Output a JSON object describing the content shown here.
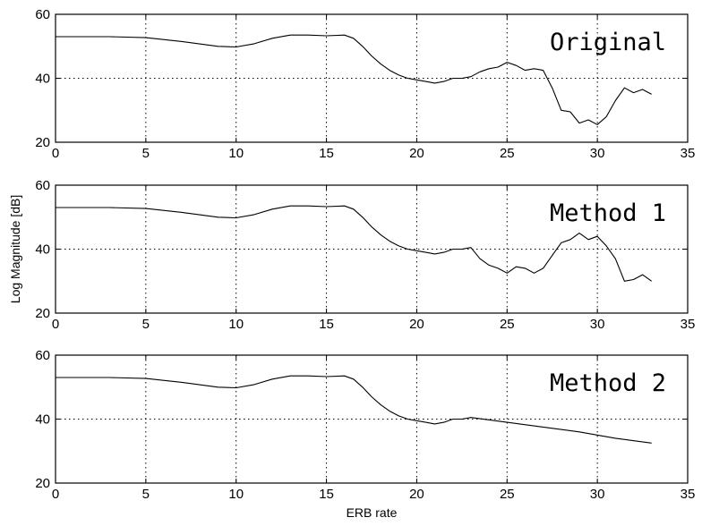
{
  "chart_data": [
    {
      "type": "line",
      "title": "Original",
      "xlim": [
        0,
        35
      ],
      "ylim": [
        20,
        60
      ],
      "xticks": [
        0,
        5,
        10,
        15,
        20,
        25,
        30,
        35
      ],
      "yticks": [
        20,
        40,
        60
      ],
      "grid": true,
      "series": [
        {
          "x": [
            0,
            3,
            5,
            7,
            9,
            10,
            11,
            12,
            13,
            14,
            15,
            16,
            16.5,
            17,
            17.5,
            18,
            18.5,
            19,
            19.5,
            20,
            20.5,
            21,
            21.5,
            22,
            22.5,
            23,
            23.5,
            24,
            24.5,
            25,
            25.5,
            26,
            26.5,
            27,
            27.5,
            28,
            28.5,
            29,
            29.5,
            30,
            30.5,
            31,
            31.5,
            32,
            32.5,
            33
          ],
          "y": [
            53,
            53,
            52.7,
            51.5,
            50,
            49.8,
            50.8,
            52.5,
            53.5,
            53.5,
            53.3,
            53.5,
            52.5,
            50,
            47,
            44.5,
            42.5,
            41,
            40,
            39.5,
            39,
            38.5,
            39,
            40,
            40,
            40.5,
            42,
            43,
            43.5,
            45,
            44,
            42.5,
            43,
            42.5,
            37,
            30,
            29.5,
            26,
            27,
            25.5,
            28,
            33,
            37,
            35.5,
            36.5,
            35
          ]
        }
      ]
    },
    {
      "type": "line",
      "title": "Method 1",
      "ylabel": "Log Magnitude [dB]",
      "xlim": [
        0,
        35
      ],
      "ylim": [
        20,
        60
      ],
      "xticks": [
        0,
        5,
        10,
        15,
        20,
        25,
        30,
        35
      ],
      "yticks": [
        20,
        40,
        60
      ],
      "grid": true,
      "series": [
        {
          "x": [
            0,
            3,
            5,
            7,
            9,
            10,
            11,
            12,
            13,
            14,
            15,
            16,
            16.5,
            17,
            17.5,
            18,
            18.5,
            19,
            19.5,
            20,
            20.5,
            21,
            21.5,
            22,
            22.5,
            23,
            23.5,
            24,
            24.5,
            25,
            25.5,
            26,
            26.5,
            27,
            27.5,
            28,
            28.5,
            29,
            29.5,
            30,
            30.5,
            31,
            31.5,
            32,
            32.5,
            33
          ],
          "y": [
            53,
            53,
            52.7,
            51.5,
            50,
            49.8,
            50.8,
            52.5,
            53.5,
            53.5,
            53.3,
            53.5,
            52.5,
            50,
            47,
            44.5,
            42.5,
            41,
            40,
            39.5,
            39,
            38.5,
            39,
            40,
            40,
            40.5,
            37,
            35,
            34,
            32.5,
            34.5,
            34,
            32.5,
            34,
            38,
            42,
            43,
            45,
            43,
            44,
            41,
            37,
            30,
            30.5,
            32,
            30
          ]
        }
      ]
    },
    {
      "type": "line",
      "title": "Method 2",
      "xlabel": "ERB rate",
      "xlim": [
        0,
        35
      ],
      "ylim": [
        20,
        60
      ],
      "xticks": [
        0,
        5,
        10,
        15,
        20,
        25,
        30,
        35
      ],
      "yticks": [
        20,
        40,
        60
      ],
      "grid": true,
      "series": [
        {
          "x": [
            0,
            3,
            5,
            7,
            9,
            10,
            11,
            12,
            13,
            14,
            15,
            16,
            16.5,
            17,
            17.5,
            18,
            18.5,
            19,
            19.5,
            20,
            20.5,
            21,
            21.5,
            22,
            22.5,
            23,
            25,
            27,
            29,
            31,
            33
          ],
          "y": [
            53,
            53,
            52.7,
            51.5,
            50,
            49.8,
            50.8,
            52.5,
            53.5,
            53.5,
            53.3,
            53.5,
            52.5,
            50,
            47,
            44.5,
            42.5,
            41,
            40,
            39.5,
            39,
            38.5,
            39,
            40,
            40,
            40.5,
            39,
            37.5,
            36,
            34,
            32.5
          ]
        }
      ]
    }
  ]
}
